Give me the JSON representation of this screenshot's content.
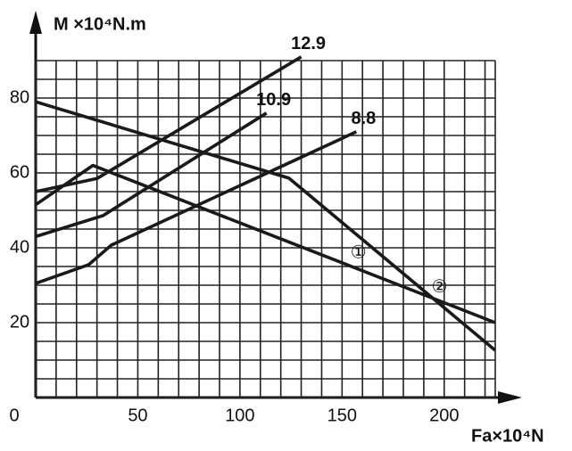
{
  "chart_data": {
    "type": "line",
    "ylabel": "M ×10⁴N.m",
    "xlabel": "Fa×10⁴N",
    "xlim": [
      0,
      225
    ],
    "ylim": [
      0,
      90
    ],
    "xticks": [
      0,
      50,
      100,
      150,
      200
    ],
    "yticks": [
      20,
      40,
      60,
      80
    ],
    "xgrid": [
      0,
      10,
      20,
      30,
      40,
      50,
      60,
      70,
      80,
      90,
      100,
      110,
      120,
      130,
      140,
      150,
      160,
      170,
      180,
      190,
      200,
      210,
      220,
      225
    ],
    "ygrid": [
      0,
      5,
      10,
      15,
      20,
      25,
      30,
      35,
      40,
      45,
      50,
      55,
      60,
      65,
      70,
      75,
      80,
      85,
      90
    ],
    "grid": true,
    "color": "#1a1a1a",
    "series": [
      {
        "name": "12.9",
        "x": [
          0,
          30,
          130
        ],
        "values": [
          55,
          58.5,
          91
        ]
      },
      {
        "name": "10.9",
        "x": [
          0,
          33,
          113
        ],
        "values": [
          43,
          48.6,
          76
        ]
      },
      {
        "name": "8.8",
        "x": [
          0,
          26,
          37,
          157
        ],
        "values": [
          30.5,
          35.5,
          40.7,
          71
        ]
      },
      {
        "name": "①",
        "x": [
          0,
          28,
          225
        ],
        "values": [
          51.5,
          62,
          20
        ]
      },
      {
        "name": "②",
        "x": [
          0,
          124,
          225
        ],
        "values": [
          79,
          58.6,
          12.6
        ]
      }
    ]
  }
}
